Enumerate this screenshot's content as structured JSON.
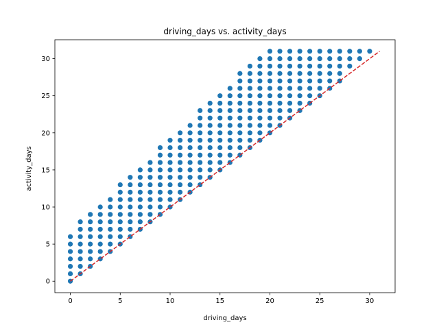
{
  "chart_data": {
    "type": "scatter",
    "title": "driving_days vs. activity_days",
    "xlabel": "driving_days",
    "ylabel": "activity_days",
    "xlim": [
      -1.55,
      32.55
    ],
    "ylim": [
      -1.55,
      32.55
    ],
    "xticks": [
      0,
      5,
      10,
      15,
      20,
      25,
      30
    ],
    "yticks": [
      0,
      5,
      10,
      15,
      20,
      25,
      30
    ],
    "grid": false,
    "point_color": "#1f77b4",
    "reference_line": {
      "x": [
        0,
        31
      ],
      "y": [
        0,
        31
      ],
      "color": "#d62728",
      "style": "dashed"
    },
    "max_activity_by_driving_day": [
      6,
      8,
      9,
      10,
      11,
      13,
      14,
      15,
      16,
      18,
      19,
      20,
      21,
      23,
      24,
      25,
      26,
      28,
      29,
      30,
      31,
      31,
      31,
      31,
      31,
      31,
      31,
      31,
      31,
      31,
      31
    ],
    "min_activity_by_driving_day": [
      0,
      1,
      2,
      3,
      4,
      5,
      6,
      7,
      8,
      9,
      10,
      11,
      12,
      13,
      14,
      15,
      16,
      17,
      18,
      19,
      20,
      21,
      22,
      23,
      24,
      25,
      26,
      27,
      29,
      30,
      31
    ]
  }
}
